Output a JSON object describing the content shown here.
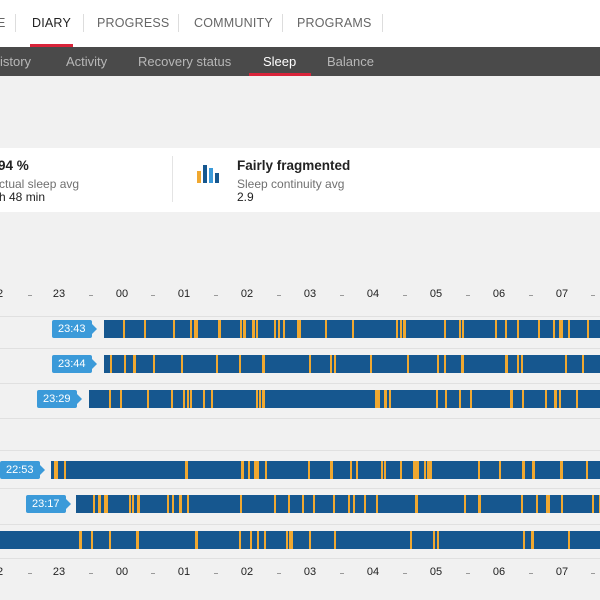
{
  "nav": {
    "tabs": [
      {
        "label": "E"
      },
      {
        "label": "DIARY"
      },
      {
        "label": "PROGRESS"
      },
      {
        "label": "COMMUNITY"
      },
      {
        "label": "PROGRAMS"
      }
    ]
  },
  "subnav": {
    "items": [
      {
        "label": "istory"
      },
      {
        "label": "Activity"
      },
      {
        "label": "Recovery status"
      },
      {
        "label": "Sleep"
      },
      {
        "label": "Balance"
      }
    ],
    "active": "Sleep"
  },
  "summary": {
    "left": {
      "title": "94 %",
      "label": "ctual sleep avg",
      "value": "h 48 min"
    },
    "right": {
      "title": "Fairly fragmented",
      "label": "Sleep continuity avg",
      "value": "2.9",
      "icon": "sleep-continuity-icon"
    }
  },
  "axis": {
    "labels": [
      "2",
      "23",
      "00",
      "01",
      "02",
      "03",
      "04",
      "05",
      "06",
      "07"
    ]
  },
  "rows": [
    {
      "start": "23:43"
    },
    {
      "start": "23:44"
    },
    {
      "start": "23:29"
    },
    {
      "start": "22:53"
    },
    {
      "start": "23:17"
    },
    {
      "start": ""
    }
  ],
  "colors": {
    "accent": "#d9243a",
    "sleep_bar": "#16578f",
    "wake_marker": "#f0a830",
    "start_tag": "#3b9ad9",
    "subnav_bg": "#4a4a4a"
  }
}
